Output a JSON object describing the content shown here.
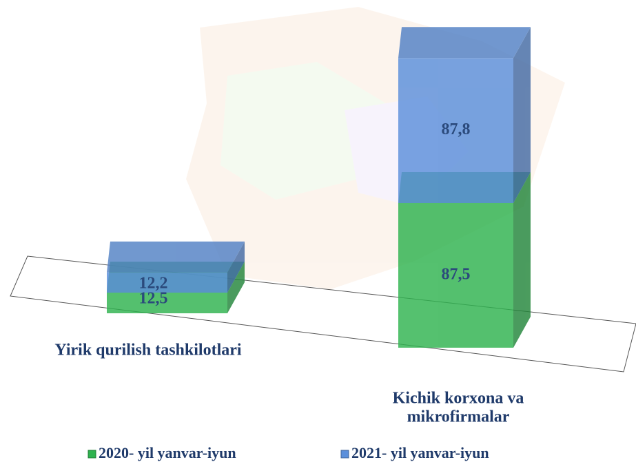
{
  "chart_data": {
    "type": "bar3d-stacked",
    "categories": [
      [
        "Yirik qurilish tashkilotlari"
      ],
      [
        "Kichik korxona va",
        "mikrofirmalar"
      ]
    ],
    "series": [
      {
        "name": "2020- yil yanvar-iyun",
        "color": "#2fb34f",
        "values": [
          12.5,
          87.5
        ],
        "value_labels": [
          "12,5",
          "87,5"
        ]
      },
      {
        "name": "2021- yil yanvar-iyun",
        "color": "#5b8fdb",
        "values": [
          12.2,
          87.8
        ],
        "value_labels": [
          "12,2",
          "87,8"
        ]
      }
    ]
  }
}
